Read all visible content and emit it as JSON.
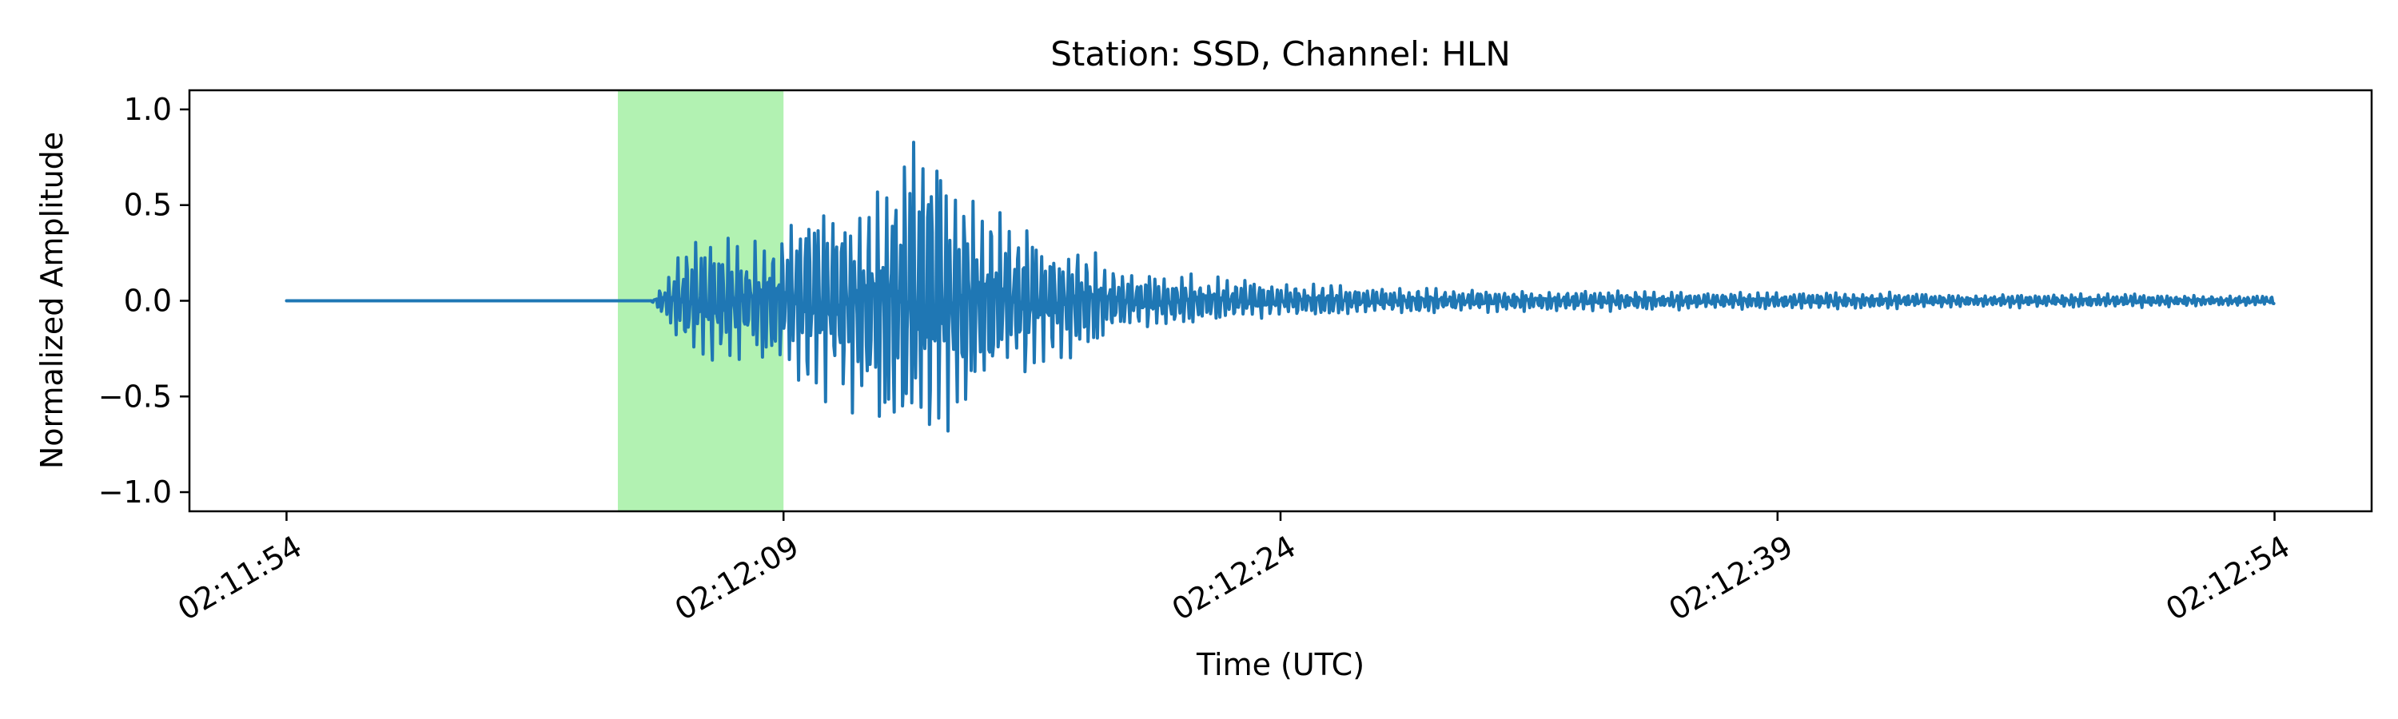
{
  "chart_data": {
    "type": "line",
    "title": "Station: SSD, Channel: HLN",
    "xlabel": "Time (UTC)",
    "ylabel": "Normalized Amplitude",
    "x_ticks": [
      "02:11:54",
      "02:12:09",
      "02:12:24",
      "02:12:39",
      "02:12:54"
    ],
    "x_tick_seconds": [
      0,
      15,
      30,
      45,
      60
    ],
    "xlim_seconds": [
      -2.93,
      62.93
    ],
    "y_ticks": [
      1.0,
      0.5,
      0.0,
      -0.5,
      -1.0
    ],
    "y_tick_labels": [
      "1.0",
      "0.5",
      "0.0",
      "−0.5",
      "−1.0"
    ],
    "ylim": [
      -1.1,
      1.1
    ],
    "grid": false,
    "legend": "none",
    "highlight_span_seconds": [
      10.0,
      15.0
    ],
    "highlight_color": "#b2f2b2",
    "line_color": "#1f77b4",
    "series": [
      {
        "x": [
          0,
          11.0,
          11.5,
          12.0,
          12.5,
          13.0,
          13.5,
          14.0,
          14.5,
          15.0,
          15.5,
          16.0,
          16.5,
          17.0,
          17.5,
          18.0,
          18.5,
          19.0,
          19.5,
          20.0,
          20.5,
          21.0,
          21.5,
          22.0,
          22.5,
          23.0,
          23.5,
          24.0,
          25.0,
          26.0,
          27.0,
          28.0,
          29.0,
          30.0,
          31.0,
          32.0,
          33.0,
          34.0,
          35.0,
          36.0,
          38.0,
          40.0,
          42.0,
          44.0,
          46.0,
          48.0,
          50.0,
          52.0,
          54.0,
          56.0,
          58.0,
          60.0
        ],
        "y": [
          0.0,
          0.0,
          0.15,
          0.33,
          0.38,
          0.4,
          0.4,
          0.3,
          0.5,
          0.4,
          0.55,
          0.6,
          0.6,
          0.65,
          0.6,
          0.83,
          0.85,
          0.98,
          1.0,
          0.8,
          0.7,
          0.6,
          0.5,
          0.5,
          0.45,
          0.38,
          0.35,
          0.32,
          0.2,
          0.18,
          0.15,
          0.13,
          0.12,
          0.1,
          0.1,
          0.09,
          0.08,
          0.08,
          0.07,
          0.07,
          0.06,
          0.06,
          0.05,
          0.05,
          0.05,
          0.05,
          0.04,
          0.04,
          0.04,
          0.04,
          0.03,
          0.03
        ]
      }
    ]
  }
}
